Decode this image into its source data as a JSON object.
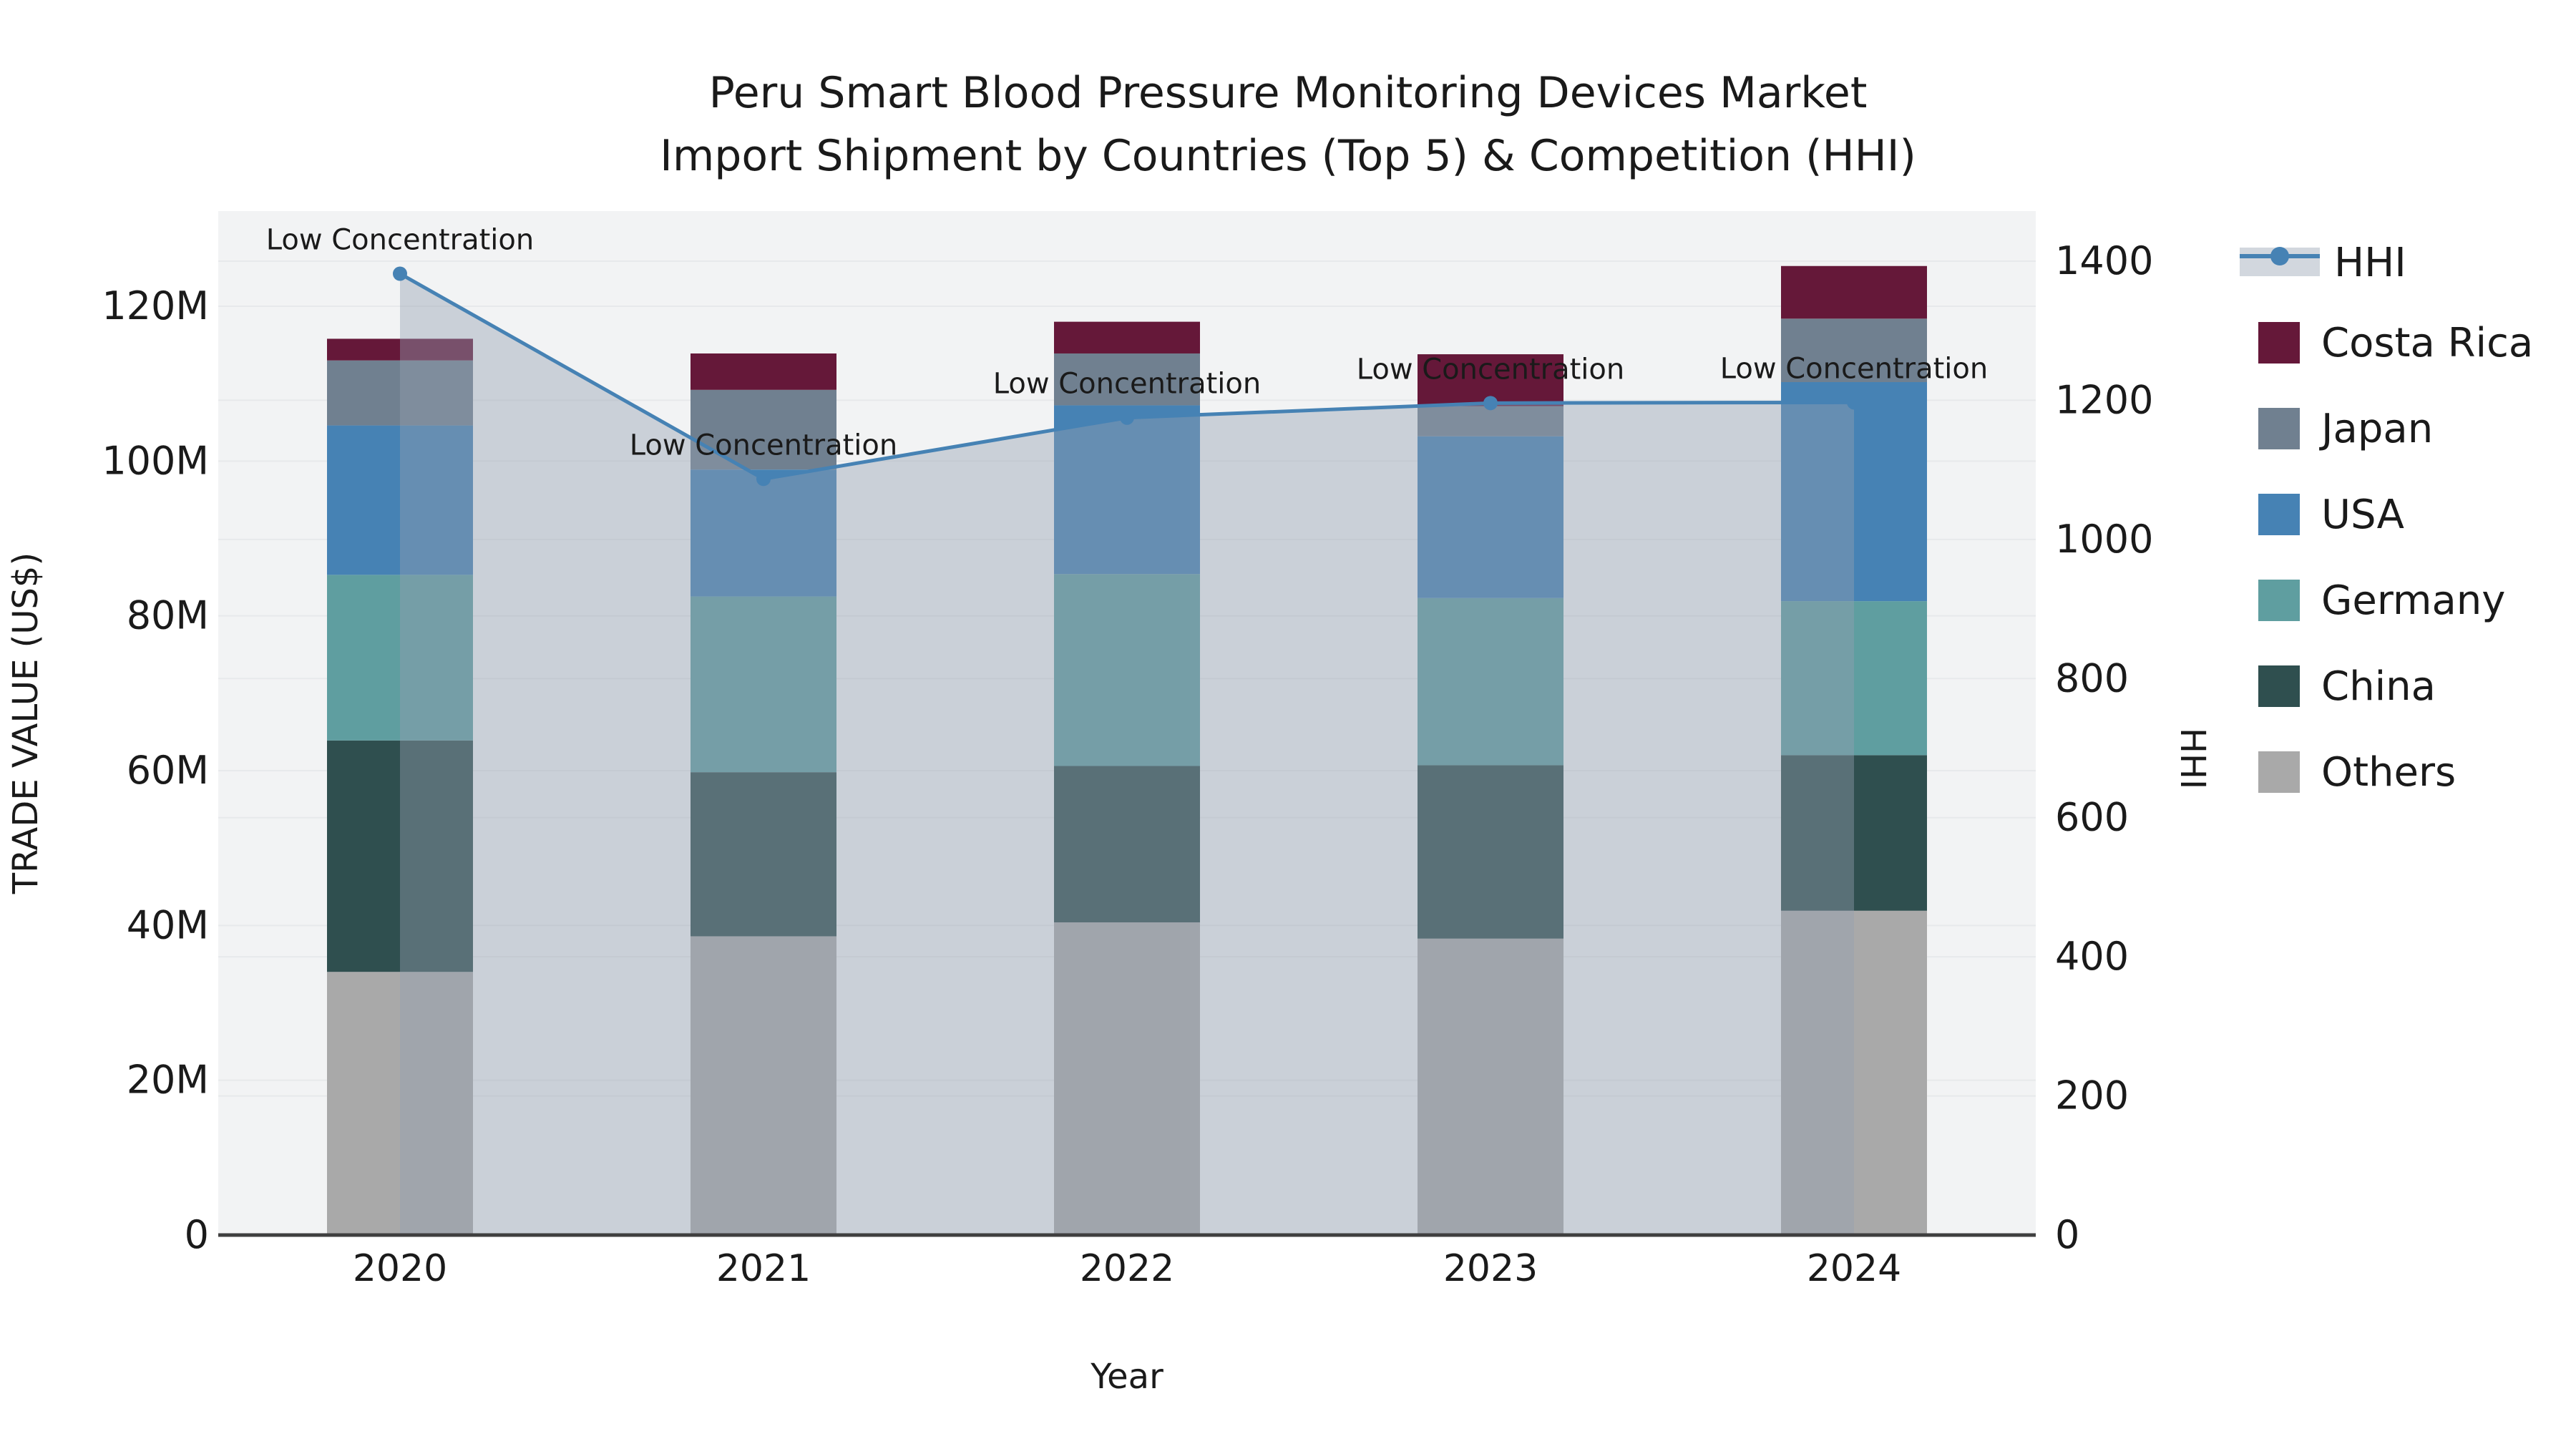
{
  "title": {
    "line1": "Peru Smart Blood Pressure Monitoring Devices Market",
    "line2": "Import Shipment by Countries (Top 5) & Competition (HHI)"
  },
  "axes": {
    "x_title": "Year",
    "y_left_title": "TRADE VALUE (US$)",
    "y_right_title": "HHI",
    "y_left_ticks": [
      "0",
      "20M",
      "40M",
      "60M",
      "80M",
      "100M",
      "120M"
    ],
    "y_left_tick_values": [
      0,
      20,
      40,
      60,
      80,
      100,
      120
    ],
    "y_right_ticks": [
      "0",
      "200",
      "400",
      "600",
      "800",
      "1000",
      "1200",
      "1400"
    ],
    "y_right_tick_values": [
      0,
      200,
      400,
      600,
      800,
      1000,
      1200,
      1400
    ],
    "y_left_max": 132,
    "y_right_max": 1472
  },
  "legend": [
    {
      "label": "HHI",
      "type": "line",
      "color": "#4682B4"
    },
    {
      "label": "Costa Rica",
      "type": "box",
      "color": "#651839"
    },
    {
      "label": "Japan",
      "type": "box",
      "color": "#708090"
    },
    {
      "label": "USA",
      "type": "box",
      "color": "#4682B4"
    },
    {
      "label": "Germany",
      "type": "box",
      "color": "#5F9EA0"
    },
    {
      "label": "China",
      "type": "box",
      "color": "#2F4F4F"
    },
    {
      "label": "Others",
      "type": "box",
      "color": "#A9A9A9"
    }
  ],
  "annotation_text": "Low Concentration",
  "colors": {
    "costa_rica": "#651839",
    "japan": "#708090",
    "usa": "#4682B4",
    "germany": "#5F9EA0",
    "china": "#2F4F4F",
    "others": "#A9A9A9",
    "hhi_line": "#4682B4",
    "hhi_fill": "rgba(148,160,176,0.42)",
    "plot_bg": "#f2f3f4",
    "grid": "#e7e9eb",
    "axis_line": "#3f3f3f"
  },
  "chart_data": {
    "type": "bar",
    "subtype": "stacked-with-line",
    "categories": [
      "2020",
      "2021",
      "2022",
      "2023",
      "2024"
    ],
    "series": [
      {
        "name": "Others",
        "axis": "left",
        "values": [
          34.0,
          38.6,
          40.4,
          38.3,
          41.9
        ]
      },
      {
        "name": "China",
        "axis": "left",
        "values": [
          29.9,
          21.2,
          20.2,
          22.4,
          20.1
        ]
      },
      {
        "name": "Germany",
        "axis": "left",
        "values": [
          21.4,
          22.7,
          24.8,
          21.6,
          19.9
        ]
      },
      {
        "name": "USA",
        "axis": "left",
        "values": [
          19.3,
          16.4,
          21.8,
          20.9,
          28.3
        ]
      },
      {
        "name": "Japan",
        "axis": "left",
        "values": [
          8.4,
          10.3,
          6.7,
          3.9,
          8.2
        ]
      },
      {
        "name": "Costa Rica",
        "axis": "left",
        "values": [
          2.8,
          4.7,
          4.1,
          6.7,
          6.8
        ]
      }
    ],
    "stack_totals": [
      115.8,
      113.9,
      118.0,
      113.8,
      125.2
    ],
    "line_series": {
      "name": "HHI",
      "axis": "right",
      "values": [
        1382,
        1087,
        1175,
        1196,
        1197
      ],
      "annotations": [
        "Low Concentration",
        "Low Concentration",
        "Low Concentration",
        "Low Concentration",
        "Low Concentration"
      ]
    },
    "title": "Peru Smart Blood Pressure Monitoring Devices Market Import Shipment by Countries (Top 5) & Competition (HHI)",
    "xlabel": "Year",
    "ylabel_left": "TRADE VALUE (US$)",
    "ylabel_right": "HHI",
    "ylim_left": [
      0,
      132
    ],
    "ylim_right": [
      0,
      1472
    ],
    "grid": true,
    "legend_position": "right"
  }
}
